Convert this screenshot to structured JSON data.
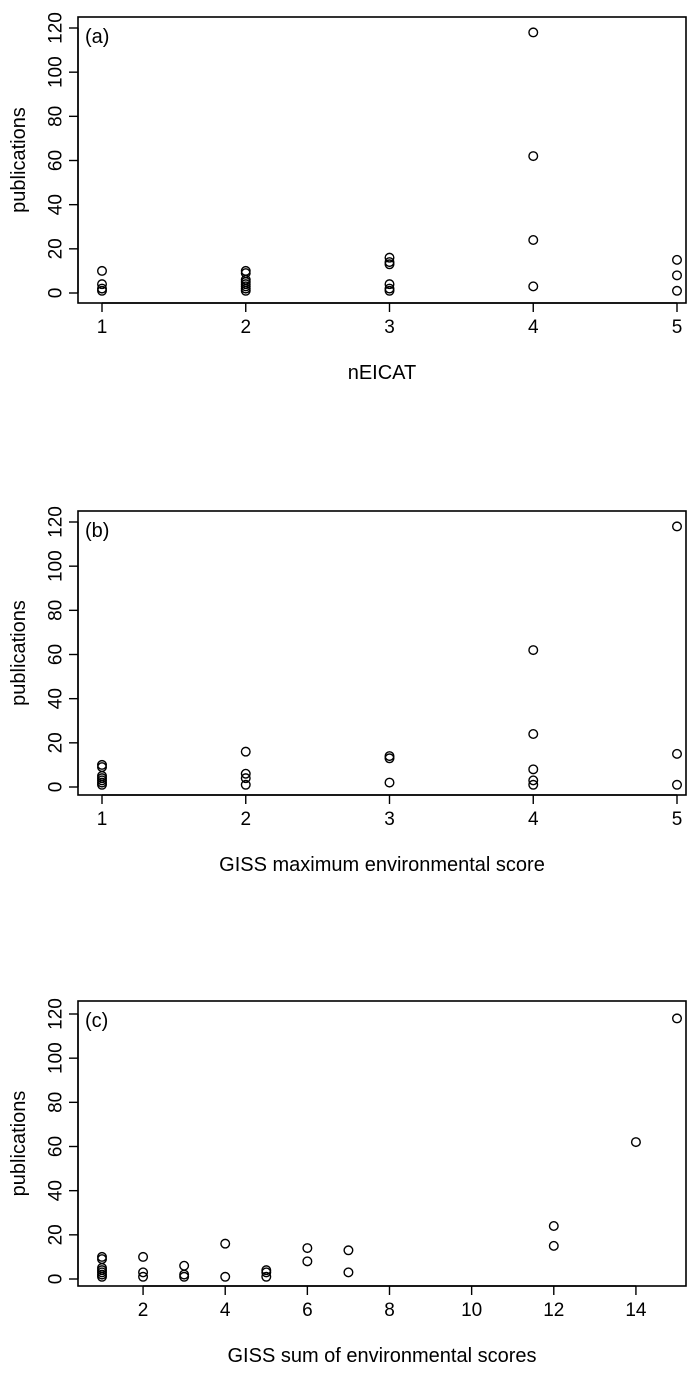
{
  "chart_data": [
    {
      "type": "scatter",
      "panel_label": "(a)",
      "xlabel": "nEICAT",
      "ylabel": "publications",
      "xlim": [
        1,
        5
      ],
      "ylim": [
        0,
        120
      ],
      "xticks": [
        1,
        2,
        3,
        4,
        5
      ],
      "yticks": [
        0,
        20,
        40,
        60,
        80,
        100,
        120
      ],
      "grid": false,
      "points": [
        {
          "x": 1,
          "y": 10
        },
        {
          "x": 1,
          "y": 4
        },
        {
          "x": 1,
          "y": 2
        },
        {
          "x": 1,
          "y": 1
        },
        {
          "x": 2,
          "y": 10
        },
        {
          "x": 2,
          "y": 9
        },
        {
          "x": 2,
          "y": 6
        },
        {
          "x": 2,
          "y": 5
        },
        {
          "x": 2,
          "y": 4
        },
        {
          "x": 2,
          "y": 3
        },
        {
          "x": 2,
          "y": 2
        },
        {
          "x": 2,
          "y": 1
        },
        {
          "x": 3,
          "y": 16
        },
        {
          "x": 3,
          "y": 14
        },
        {
          "x": 3,
          "y": 13
        },
        {
          "x": 3,
          "y": 4
        },
        {
          "x": 3,
          "y": 2
        },
        {
          "x": 3,
          "y": 1
        },
        {
          "x": 4,
          "y": 118
        },
        {
          "x": 4,
          "y": 62
        },
        {
          "x": 4,
          "y": 24
        },
        {
          "x": 4,
          "y": 3
        },
        {
          "x": 5,
          "y": 15
        },
        {
          "x": 5,
          "y": 8
        },
        {
          "x": 5,
          "y": 1
        }
      ]
    },
    {
      "type": "scatter",
      "panel_label": "(b)",
      "xlabel": "GISS maximum environmental score",
      "ylabel": "publications",
      "xlim": [
        1,
        5
      ],
      "ylim": [
        0,
        120
      ],
      "xticks": [
        1,
        2,
        3,
        4,
        5
      ],
      "yticks": [
        0,
        20,
        40,
        60,
        80,
        100,
        120
      ],
      "grid": false,
      "points": [
        {
          "x": 1,
          "y": 10
        },
        {
          "x": 1,
          "y": 9
        },
        {
          "x": 1,
          "y": 5
        },
        {
          "x": 1,
          "y": 4
        },
        {
          "x": 1,
          "y": 3
        },
        {
          "x": 1,
          "y": 2
        },
        {
          "x": 1,
          "y": 1
        },
        {
          "x": 2,
          "y": 16
        },
        {
          "x": 2,
          "y": 6
        },
        {
          "x": 2,
          "y": 4
        },
        {
          "x": 2,
          "y": 1
        },
        {
          "x": 3,
          "y": 14
        },
        {
          "x": 3,
          "y": 13
        },
        {
          "x": 3,
          "y": 2
        },
        {
          "x": 4,
          "y": 62
        },
        {
          "x": 4,
          "y": 24
        },
        {
          "x": 4,
          "y": 8
        },
        {
          "x": 4,
          "y": 3
        },
        {
          "x": 4,
          "y": 1
        },
        {
          "x": 5,
          "y": 118
        },
        {
          "x": 5,
          "y": 15
        },
        {
          "x": 5,
          "y": 1
        }
      ]
    },
    {
      "type": "scatter",
      "panel_label": "(c)",
      "xlabel": "GISS sum of environmental scores",
      "ylabel": "publications",
      "xlim": [
        1,
        15
      ],
      "ylim": [
        0,
        120
      ],
      "xticks": [
        2,
        4,
        6,
        8,
        10,
        12,
        14
      ],
      "yticks": [
        0,
        20,
        40,
        60,
        80,
        100,
        120
      ],
      "grid": false,
      "points": [
        {
          "x": 1,
          "y": 10
        },
        {
          "x": 1,
          "y": 9
        },
        {
          "x": 1,
          "y": 5
        },
        {
          "x": 1,
          "y": 4
        },
        {
          "x": 1,
          "y": 3
        },
        {
          "x": 1,
          "y": 2
        },
        {
          "x": 1,
          "y": 1
        },
        {
          "x": 2,
          "y": 10
        },
        {
          "x": 2,
          "y": 3
        },
        {
          "x": 2,
          "y": 1
        },
        {
          "x": 3,
          "y": 6
        },
        {
          "x": 3,
          "y": 2
        },
        {
          "x": 3,
          "y": 1
        },
        {
          "x": 4,
          "y": 16
        },
        {
          "x": 4,
          "y": 1
        },
        {
          "x": 5,
          "y": 4
        },
        {
          "x": 5,
          "y": 3
        },
        {
          "x": 5,
          "y": 1
        },
        {
          "x": 6,
          "y": 14
        },
        {
          "x": 6,
          "y": 8
        },
        {
          "x": 7,
          "y": 13
        },
        {
          "x": 7,
          "y": 3
        },
        {
          "x": 12,
          "y": 24
        },
        {
          "x": 12,
          "y": 15
        },
        {
          "x": 14,
          "y": 62
        },
        {
          "x": 15,
          "y": 118
        }
      ]
    }
  ]
}
